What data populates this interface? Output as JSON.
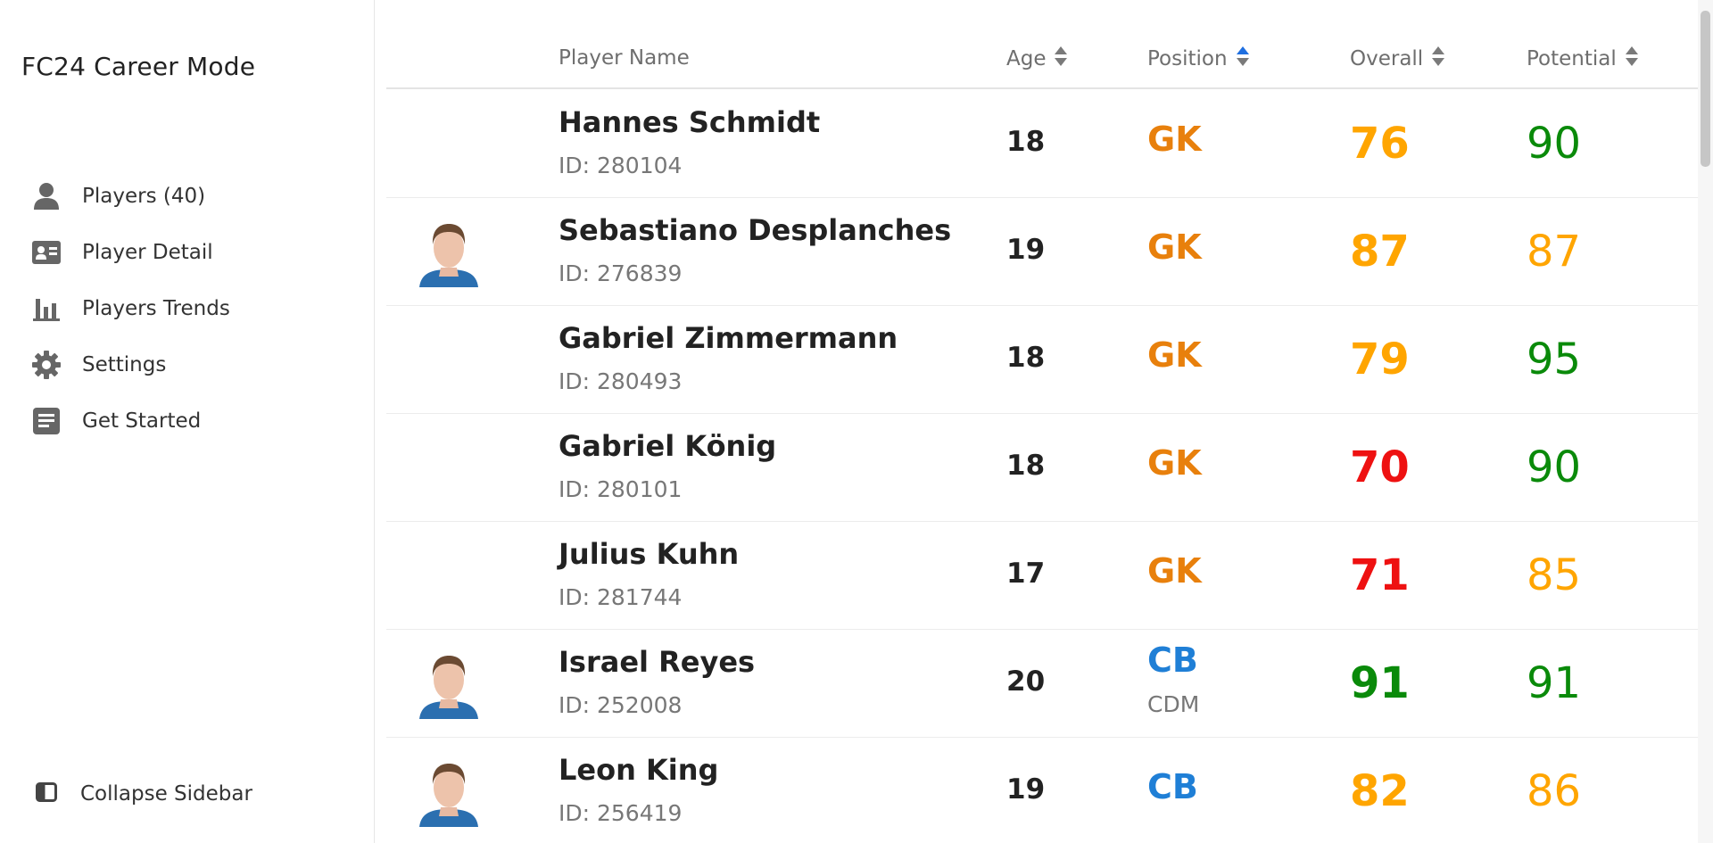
{
  "sidebar": {
    "title": "FC24 Career Mode",
    "items": [
      {
        "label": "Players (40)",
        "icon": "person-icon"
      },
      {
        "label": "Player Detail",
        "icon": "id-card-icon"
      },
      {
        "label": "Players Trends",
        "icon": "bar-chart-icon"
      },
      {
        "label": "Settings",
        "icon": "gear-icon"
      },
      {
        "label": "Get Started",
        "icon": "document-icon"
      }
    ],
    "collapse_label": "Collapse Sidebar"
  },
  "table": {
    "headers": {
      "name": "Player Name",
      "age": "Age",
      "position": "Position",
      "overall": "Overall",
      "potential": "Potential"
    },
    "active_sort": "position",
    "rows": [
      {
        "name": "Hannes Schmidt",
        "id": "ID: 280104",
        "age": "18",
        "position": "GK",
        "position_sub": "",
        "overall": "76",
        "potential": "90",
        "has_photo": false,
        "pos_color": "#e8800c",
        "ovr_color": "#ffa500",
        "pot_color": "#0a8a0a"
      },
      {
        "name": "Sebastiano Desplanches",
        "id": "ID: 276839",
        "age": "19",
        "position": "GK",
        "position_sub": "",
        "overall": "87",
        "potential": "87",
        "has_photo": true,
        "pos_color": "#e8800c",
        "ovr_color": "#ffa500",
        "pot_color": "#ffa500"
      },
      {
        "name": "Gabriel Zimmermann",
        "id": "ID: 280493",
        "age": "18",
        "position": "GK",
        "position_sub": "",
        "overall": "79",
        "potential": "95",
        "has_photo": false,
        "pos_color": "#e8800c",
        "ovr_color": "#ffa500",
        "pot_color": "#0a8a0a"
      },
      {
        "name": "Gabriel König",
        "id": "ID: 280101",
        "age": "18",
        "position": "GK",
        "position_sub": "",
        "overall": "70",
        "potential": "90",
        "has_photo": false,
        "pos_color": "#e8800c",
        "ovr_color": "#ee1111",
        "pot_color": "#0a8a0a"
      },
      {
        "name": "Julius Kuhn",
        "id": "ID: 281744",
        "age": "17",
        "position": "GK",
        "position_sub": "",
        "overall": "71",
        "potential": "85",
        "has_photo": false,
        "pos_color": "#e8800c",
        "ovr_color": "#ee1111",
        "pot_color": "#ffa500"
      },
      {
        "name": "Israel Reyes",
        "id": "ID: 252008",
        "age": "20",
        "position": "CB",
        "position_sub": "CDM",
        "overall": "91",
        "potential": "91",
        "has_photo": true,
        "pos_color": "#1f7fd6",
        "ovr_color": "#0a8a0a",
        "pot_color": "#0a8a0a"
      },
      {
        "name": "Leon King",
        "id": "ID: 256419",
        "age": "19",
        "position": "CB",
        "position_sub": "",
        "overall": "82",
        "potential": "86",
        "has_photo": true,
        "pos_color": "#1f7fd6",
        "ovr_color": "#ffa500",
        "pot_color": "#ffa500"
      }
    ]
  },
  "colors": {
    "icon": "#666666",
    "sort_default": "#7a7a7a",
    "sort_active": "#1f6fe0"
  }
}
